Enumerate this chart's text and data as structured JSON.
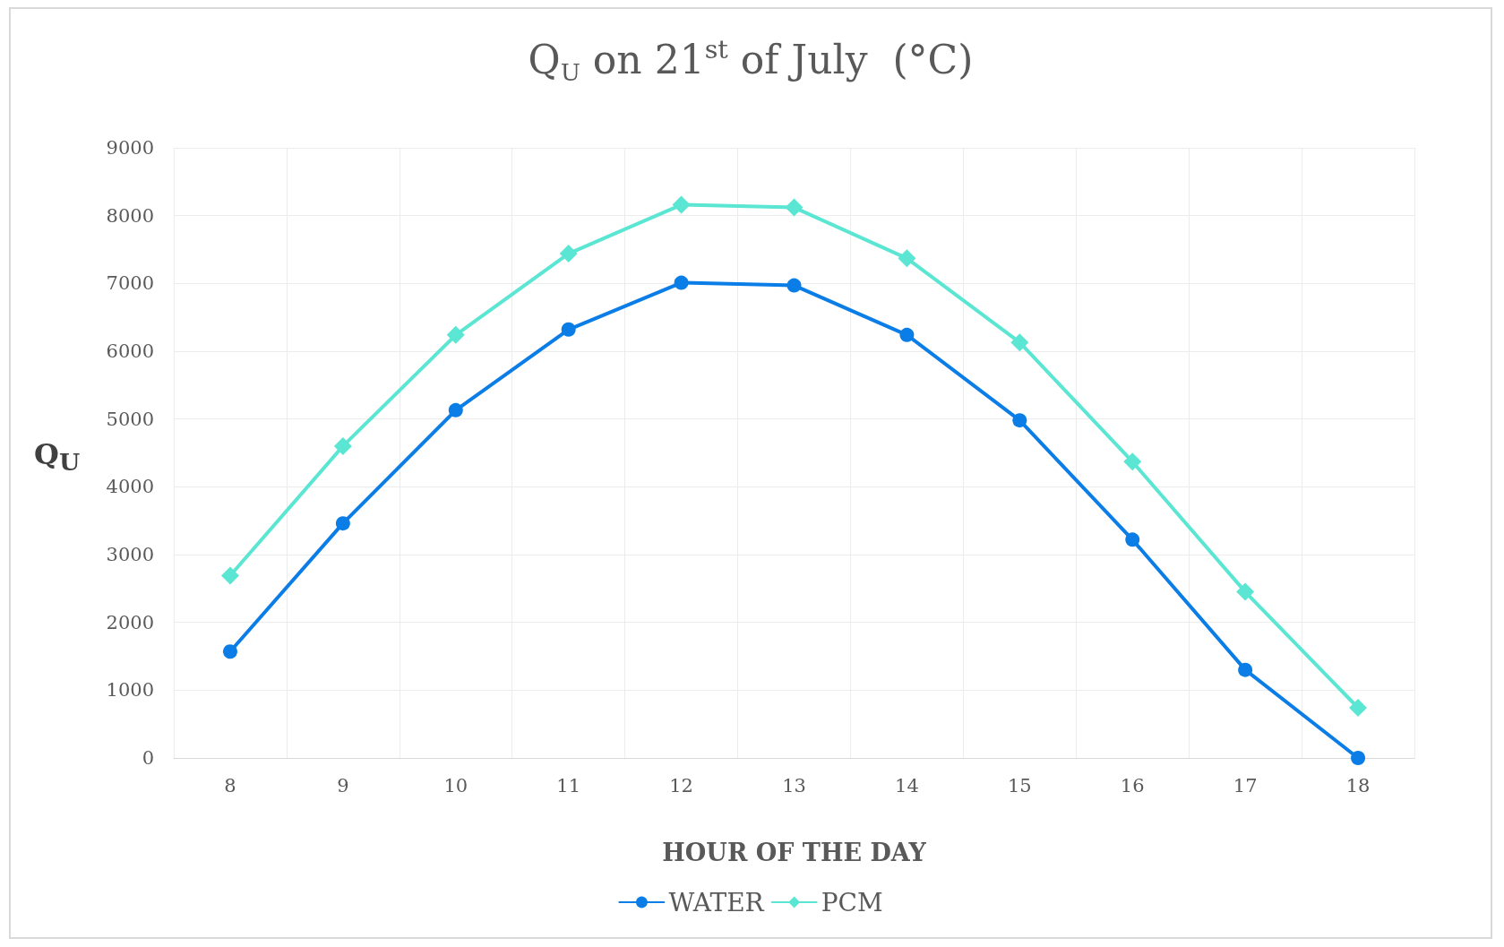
{
  "chart_data": {
    "type": "line",
    "title": "Q$_{U}$ on 21$^{st}$ of July  (°C)",
    "xlabel": "HOUR OF THE DAY",
    "ylabel": "Q$_{U}$",
    "categories": [
      "8",
      "9",
      "10",
      "11",
      "12",
      "13",
      "14",
      "15",
      "16",
      "17",
      "18"
    ],
    "series": [
      {
        "name": "WATER",
        "color": "#0a7de6",
        "marker": "circle",
        "values": [
          1570,
          3460,
          5130,
          6320,
          7010,
          6970,
          6240,
          4980,
          3220,
          1300,
          0
        ]
      },
      {
        "name": "PCM",
        "color": "#5ae6d2",
        "marker": "diamond",
        "values": [
          2690,
          4600,
          6240,
          7440,
          8160,
          8120,
          7370,
          6130,
          4370,
          2450,
          740
        ]
      }
    ],
    "ylim": [
      0,
      9000
    ],
    "yticks": [
      0,
      1000,
      2000,
      3000,
      4000,
      5000,
      6000,
      7000,
      8000,
      9000
    ],
    "grid": true,
    "legend": "bottom",
    "line_style": "solid"
  }
}
